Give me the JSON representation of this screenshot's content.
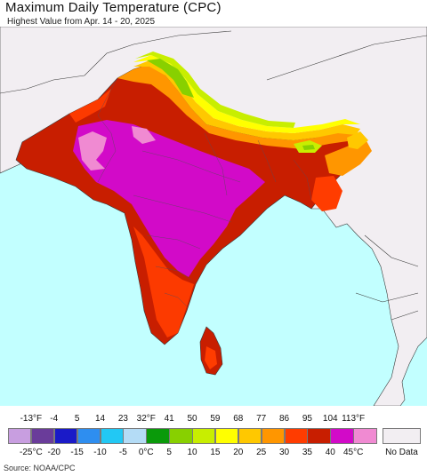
{
  "header": {
    "title": "Maximum Daily Temperature (CPC)",
    "subtitle": "Highest Value from Apr. 14 - 20, 2025"
  },
  "map": {
    "ocean_color": "#c2ffff",
    "land_outside_color": "#f2eef2",
    "border_color": "#3a3a3a"
  },
  "legend": {
    "fahrenheit_labels": [
      "-13°F",
      "-4",
      "5",
      "14",
      "23",
      "32°F",
      "41",
      "50",
      "59",
      "68",
      "77",
      "86",
      "95",
      "104",
      "113°F"
    ],
    "celsius_labels": [
      "-25°C",
      "-20",
      "-15",
      "-10",
      "-5",
      "0°C",
      "5",
      "10",
      "15",
      "20",
      "25",
      "30",
      "35",
      "40",
      "45°C"
    ],
    "colors": [
      "#c89ee0",
      "#6a3c9a",
      "#1a1ac8",
      "#2e8ef0",
      "#22c8f4",
      "#b4dcf6",
      "#0a9a0a",
      "#88d000",
      "#c8ee00",
      "#ffff00",
      "#ffc800",
      "#ff9600",
      "#ff3c00",
      "#c81e00",
      "#d20ac8",
      "#f08ad2"
    ],
    "no_data_label": "No Data"
  },
  "footer": {
    "source": "Source: NOAA/CPC"
  }
}
